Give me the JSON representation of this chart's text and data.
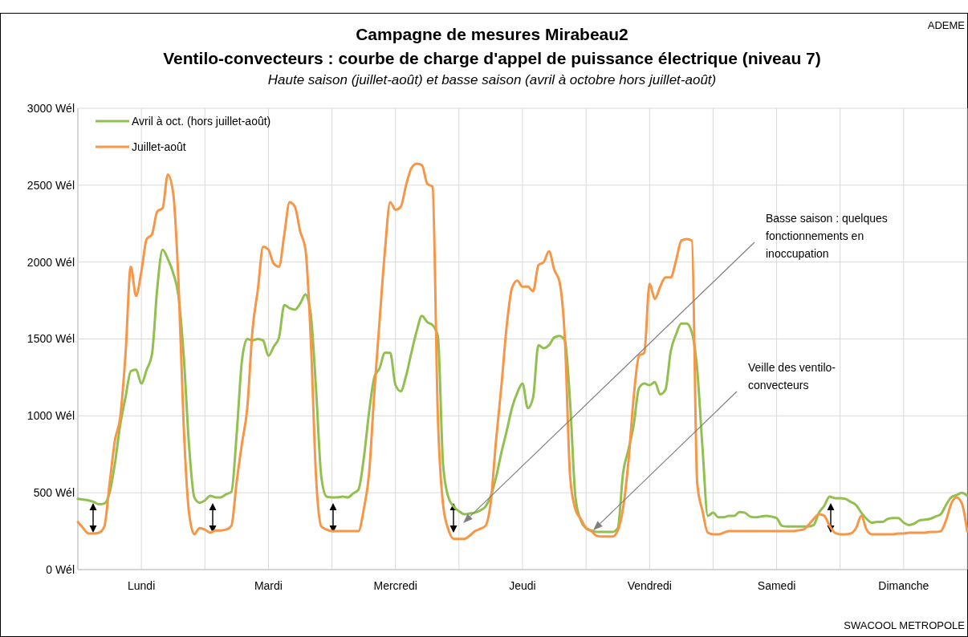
{
  "chart_data": {
    "type": "line",
    "title": "Campagne de mesures Mirabeau2\nVentilo-convecteurs : courbe de charge d'appel de puissance électrique (niveau 7)",
    "subtitle": "Haute saison (juillet-août) et basse saison (avril à octobre hors juillet-août)",
    "categories": [
      null,
      null,
      null,
      null,
      null,
      null,
      null,
      null,
      null,
      null,
      null,
      null,
      "Lundi",
      null,
      null,
      null,
      null,
      null,
      null,
      null,
      null,
      null,
      null,
      null,
      null,
      null,
      null,
      null,
      null,
      null,
      null,
      null,
      null,
      null,
      null,
      null,
      "Mardi",
      null,
      null,
      null,
      null,
      null,
      null,
      null,
      null,
      null,
      null,
      null,
      null,
      null,
      null,
      null,
      null,
      null,
      null,
      null,
      null,
      null,
      null,
      null,
      "Mercredi",
      null,
      null,
      null,
      null,
      null,
      null,
      null,
      null,
      null,
      null,
      null,
      null,
      null,
      null,
      null,
      null,
      null,
      null,
      null,
      null,
      null,
      null,
      null,
      "Jeudi",
      null,
      null,
      null,
      null,
      null,
      null,
      null,
      null,
      null,
      null,
      null,
      null,
      null,
      null,
      null,
      null,
      null,
      null,
      null,
      null,
      null,
      null,
      null,
      "Vendredi",
      null,
      null,
      null,
      null,
      null,
      null,
      null,
      null,
      null,
      null,
      null,
      null,
      null,
      null,
      null,
      null,
      null,
      null,
      null,
      null,
      null,
      null,
      null,
      "Samedi",
      null,
      null,
      null,
      null,
      null,
      null,
      null,
      null,
      null,
      null,
      null,
      null,
      null,
      null,
      null,
      null,
      null,
      null,
      null,
      null,
      null,
      null,
      null,
      "Dimanche",
      null,
      null,
      null,
      null,
      null,
      null,
      null,
      null,
      null,
      null,
      null,
      null
    ],
    "ylim": [
      0,
      3000
    ],
    "yticks": [
      {
        "value": 0,
        "label": "0 Wél"
      },
      {
        "value": 500,
        "label": "500 Wél"
      },
      {
        "value": 1000,
        "label": "1000 Wél"
      },
      {
        "value": 1500,
        "label": "1500 Wél"
      },
      {
        "value": 2000,
        "label": "2000 Wél"
      },
      {
        "value": 2500,
        "label": "2500 Wél"
      },
      {
        "value": 3000,
        "label": "3000 Wél"
      }
    ],
    "grid": true,
    "legend": "top left",
    "marker": "none",
    "line_style": "solid",
    "series": [
      {
        "name": "Avril à oct. (hors juillet-août)",
        "color": "#92c050",
        "values": [
          460,
          455,
          450,
          440,
          425,
          430,
          500,
          690,
          940,
          1120,
          1290,
          1300,
          1210,
          1300,
          1400,
          1830,
          2080,
          2020,
          1930,
          1780,
          1390,
          810,
          470,
          435,
          450,
          480,
          470,
          470,
          490,
          505,
          880,
          1360,
          1500,
          1490,
          1500,
          1490,
          1390,
          1450,
          1510,
          1720,
          1700,
          1690,
          1730,
          1790,
          1660,
          1170,
          600,
          475,
          470,
          470,
          475,
          470,
          495,
          520,
          720,
          1020,
          1250,
          1310,
          1410,
          1410,
          1200,
          1160,
          1260,
          1410,
          1550,
          1650,
          1610,
          1590,
          1520,
          680,
          470,
          410,
          380,
          360,
          365,
          370,
          385,
          410,
          480,
          600,
          760,
          900,
          1050,
          1150,
          1210,
          1050,
          1120,
          1460,
          1440,
          1460,
          1510,
          1520,
          1490,
          1080,
          470,
          320,
          270,
          255,
          245,
          245,
          245,
          245,
          270,
          630,
          780,
          940,
          1180,
          1210,
          1200,
          1220,
          1140,
          1170,
          1420,
          1530,
          1600,
          1600,
          1540,
          1300,
          790,
          350,
          370,
          340,
          340,
          350,
          350,
          375,
          370,
          345,
          340,
          345,
          350,
          345,
          335,
          285,
          280,
          280,
          280,
          280,
          280,
          290,
          370,
          415,
          475,
          465,
          465,
          460,
          440,
          420,
          370,
          330,
          305,
          310,
          310,
          330,
          335,
          335,
          305,
          290,
          300,
          320,
          325,
          330,
          345,
          360,
          420,
          470,
          485,
          500,
          480
        ]
      },
      {
        "name": "Juillet-août",
        "color": "#f79646",
        "values": [
          310,
          270,
          235,
          235,
          240,
          280,
          560,
          840,
          990,
          1400,
          1970,
          1780,
          1940,
          2150,
          2180,
          2330,
          2350,
          2570,
          2450,
          1880,
          930,
          370,
          230,
          270,
          260,
          240,
          255,
          255,
          260,
          285,
          570,
          820,
          1050,
          1560,
          1820,
          2100,
          2080,
          1990,
          1970,
          2180,
          2390,
          2360,
          2200,
          2080,
          1500,
          600,
          280,
          260,
          250,
          250,
          250,
          250,
          250,
          250,
          390,
          620,
          1150,
          1620,
          2070,
          2390,
          2340,
          2360,
          2500,
          2610,
          2640,
          2630,
          2510,
          2490,
          1000,
          420,
          260,
          200,
          200,
          200,
          220,
          250,
          265,
          285,
          440,
          840,
          1190,
          1580,
          1830,
          1880,
          1840,
          1840,
          1810,
          1980,
          2000,
          2070,
          1950,
          1870,
          1500,
          600,
          390,
          330,
          270,
          250,
          220,
          215,
          215,
          215,
          255,
          400,
          700,
          1120,
          1390,
          1410,
          1860,
          1760,
          1840,
          1900,
          1900,
          2010,
          2140,
          2150,
          2140,
          560,
          380,
          240,
          230,
          230,
          240,
          250,
          250,
          250,
          250,
          250,
          250,
          250,
          250,
          250,
          250,
          250,
          250,
          250,
          255,
          260,
          290,
          330,
          360,
          350,
          285,
          240,
          230,
          230,
          235,
          270,
          350,
          260,
          230,
          230,
          230,
          230,
          230,
          235,
          235,
          240,
          240,
          240,
          240,
          245,
          245,
          250,
          320,
          430,
          470,
          430,
          250
        ]
      }
    ],
    "annotations": [
      "Basse saison : quelques fonctionnements en inoccupation",
      "Veille des ventilo-convecteurs",
      "ADEME",
      "SWACOOL METROPOLE"
    ]
  }
}
